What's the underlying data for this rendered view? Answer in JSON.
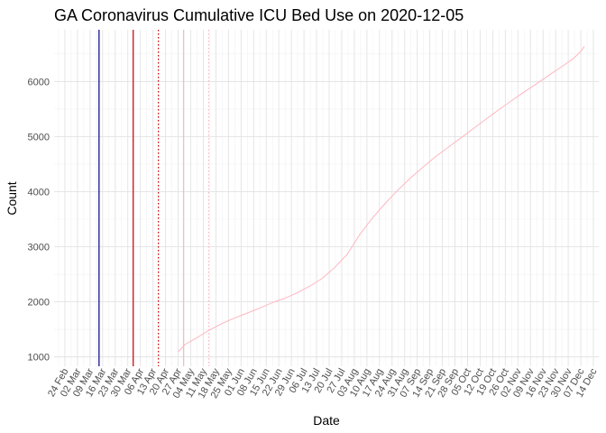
{
  "chart_data": {
    "type": "line",
    "title": "GA Coronavirus Cumulative ICU Bed Use on 2020-12-05",
    "xlabel": "Date",
    "ylabel": "Count",
    "xlim": [
      "2020-02-18",
      "2020-12-17"
    ],
    "ylim": [
      830,
      6940
    ],
    "y_ticks": [
      1000,
      2000,
      3000,
      4000,
      5000,
      6000
    ],
    "x_ticks": [
      {
        "date": "2020-02-24",
        "label": "24 Feb"
      },
      {
        "date": "2020-03-02",
        "label": "02 Mar"
      },
      {
        "date": "2020-03-09",
        "label": "09 Mar"
      },
      {
        "date": "2020-03-16",
        "label": "16 Mar"
      },
      {
        "date": "2020-03-23",
        "label": "23 Mar"
      },
      {
        "date": "2020-03-30",
        "label": "30 Mar"
      },
      {
        "date": "2020-04-06",
        "label": "06 Apr"
      },
      {
        "date": "2020-04-13",
        "label": "13 Apr"
      },
      {
        "date": "2020-04-20",
        "label": "20 Apr"
      },
      {
        "date": "2020-04-27",
        "label": "27 Apr"
      },
      {
        "date": "2020-05-04",
        "label": "04 May"
      },
      {
        "date": "2020-05-11",
        "label": "11 May"
      },
      {
        "date": "2020-05-18",
        "label": "18 May"
      },
      {
        "date": "2020-05-25",
        "label": "25 May"
      },
      {
        "date": "2020-06-01",
        "label": "01 Jun"
      },
      {
        "date": "2020-06-08",
        "label": "08 Jun"
      },
      {
        "date": "2020-06-15",
        "label": "15 Jun"
      },
      {
        "date": "2020-06-22",
        "label": "22 Jun"
      },
      {
        "date": "2020-06-29",
        "label": "29 Jun"
      },
      {
        "date": "2020-07-06",
        "label": "06 Jul"
      },
      {
        "date": "2020-07-13",
        "label": "13 Jul"
      },
      {
        "date": "2020-07-20",
        "label": "20 Jul"
      },
      {
        "date": "2020-07-27",
        "label": "27 Jul"
      },
      {
        "date": "2020-08-03",
        "label": "03 Aug"
      },
      {
        "date": "2020-08-10",
        "label": "10 Aug"
      },
      {
        "date": "2020-08-17",
        "label": "17 Aug"
      },
      {
        "date": "2020-08-24",
        "label": "24 Aug"
      },
      {
        "date": "2020-08-31",
        "label": "31 Aug"
      },
      {
        "date": "2020-09-07",
        "label": "07 Sep"
      },
      {
        "date": "2020-09-14",
        "label": "14 Sep"
      },
      {
        "date": "2020-09-21",
        "label": "21 Sep"
      },
      {
        "date": "2020-09-28",
        "label": "28 Sep"
      },
      {
        "date": "2020-10-05",
        "label": "05 Oct"
      },
      {
        "date": "2020-10-12",
        "label": "12 Oct"
      },
      {
        "date": "2020-10-19",
        "label": "19 Oct"
      },
      {
        "date": "2020-10-26",
        "label": "26 Oct"
      },
      {
        "date": "2020-11-02",
        "label": "02 Nov"
      },
      {
        "date": "2020-11-09",
        "label": "09 Nov"
      },
      {
        "date": "2020-11-16",
        "label": "16 Nov"
      },
      {
        "date": "2020-11-23",
        "label": "23 Nov"
      },
      {
        "date": "2020-11-30",
        "label": "30 Nov"
      },
      {
        "date": "2020-12-07",
        "label": "07 Dec"
      },
      {
        "date": "2020-12-14",
        "label": "14 Dec"
      }
    ],
    "grid": true,
    "vertical_lines": [
      {
        "date": "2020-03-14",
        "color": "#00008b",
        "style": "solid"
      },
      {
        "date": "2020-04-02",
        "color": "#cc0000",
        "style": "solid"
      },
      {
        "date": "2020-04-16",
        "color": "#cc0000",
        "style": "dotted"
      },
      {
        "date": "2020-04-30",
        "color": "#ffb6c1",
        "style": "solid"
      },
      {
        "date": "2020-05-14",
        "color": "#ffb6c1",
        "style": "dotted"
      }
    ],
    "series": [
      {
        "color": "#ffb6c1",
        "points": [
          [
            "2020-04-27",
            1090
          ],
          [
            "2020-05-01",
            1230
          ],
          [
            "2020-05-07",
            1340
          ],
          [
            "2020-05-14",
            1480
          ],
          [
            "2020-05-21",
            1600
          ],
          [
            "2020-05-28",
            1700
          ],
          [
            "2020-06-04",
            1790
          ],
          [
            "2020-06-11",
            1880
          ],
          [
            "2020-06-18",
            1980
          ],
          [
            "2020-06-25",
            2060
          ],
          [
            "2020-07-02",
            2160
          ],
          [
            "2020-07-09",
            2280
          ],
          [
            "2020-07-16",
            2420
          ],
          [
            "2020-07-23",
            2620
          ],
          [
            "2020-07-30",
            2860
          ],
          [
            "2020-08-06",
            3220
          ],
          [
            "2020-08-13",
            3520
          ],
          [
            "2020-08-20",
            3780
          ],
          [
            "2020-08-27",
            4020
          ],
          [
            "2020-09-03",
            4240
          ],
          [
            "2020-09-10",
            4440
          ],
          [
            "2020-09-17",
            4630
          ],
          [
            "2020-09-24",
            4800
          ],
          [
            "2020-10-01",
            4970
          ],
          [
            "2020-10-08",
            5140
          ],
          [
            "2020-10-15",
            5310
          ],
          [
            "2020-10-22",
            5480
          ],
          [
            "2020-10-29",
            5640
          ],
          [
            "2020-11-05",
            5800
          ],
          [
            "2020-11-12",
            5950
          ],
          [
            "2020-11-19",
            6110
          ],
          [
            "2020-11-26",
            6260
          ],
          [
            "2020-12-03",
            6420
          ],
          [
            "2020-12-07",
            6550
          ],
          [
            "2020-12-09",
            6640
          ]
        ]
      }
    ]
  }
}
